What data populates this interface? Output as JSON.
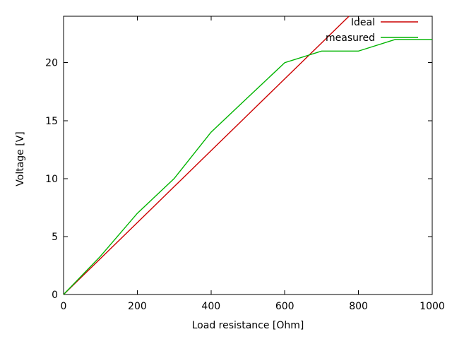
{
  "window": {
    "background_color": "#ffffff",
    "axis_color": "#000000",
    "text_color": "#000000"
  },
  "chart_data": {
    "type": "line",
    "title": "",
    "xlabel": "Load resistance [Ohm]",
    "ylabel": "Voltage [V]",
    "xlim": [
      0,
      1000
    ],
    "ylim": [
      0,
      24
    ],
    "x_ticks": [
      0,
      200,
      400,
      600,
      800,
      1000
    ],
    "y_ticks": [
      0,
      5,
      10,
      15,
      20
    ],
    "grid": false,
    "clip_to_ylim": true,
    "tick_style": "inward-mirrored",
    "legend_position": "top-right-inside",
    "x": [
      0,
      100,
      200,
      300,
      400,
      500,
      600,
      700,
      800,
      900,
      1000
    ],
    "series": [
      {
        "name": "Ideal",
        "color": "#cc0000",
        "values": [
          0,
          3.1,
          6.2,
          9.3,
          12.4,
          15.5,
          18.6,
          21.7,
          24.8,
          27.9,
          31
        ]
      },
      {
        "name": "measured",
        "color": "#00b400",
        "values": [
          0,
          3.3,
          7,
          10,
          14,
          17,
          20,
          21,
          21,
          22,
          22
        ]
      }
    ]
  }
}
